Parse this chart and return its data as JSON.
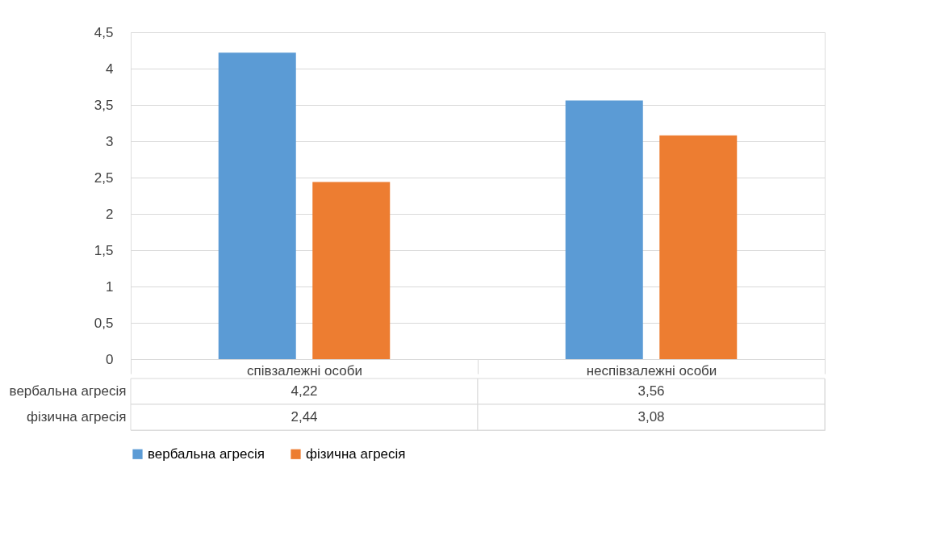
{
  "chart_data": {
    "type": "bar",
    "categories": [
      "співзалежні особи",
      "неспівзалежні особи"
    ],
    "series": [
      {
        "name": "вербальна агресія",
        "color": "#5b9bd5",
        "values": [
          4.22,
          3.56
        ],
        "value_labels": [
          "4,22",
          "3,56"
        ]
      },
      {
        "name": "фізична агресія",
        "color": "#ed7d31",
        "values": [
          2.44,
          3.08
        ],
        "value_labels": [
          "2,44",
          "3,08"
        ]
      }
    ],
    "ylim": [
      0,
      4.5
    ],
    "yticks": [
      0,
      {
        "value": 0.5,
        "label": "0,5"
      },
      1,
      {
        "value": 1.5,
        "label": "1,5"
      },
      2,
      {
        "value": 2.5,
        "label": "2,5"
      },
      3,
      {
        "value": 3.5,
        "label": "3,5"
      },
      4,
      {
        "value": 4.5,
        "label": "4,5"
      }
    ],
    "grid": "y",
    "legend": "bottom"
  }
}
